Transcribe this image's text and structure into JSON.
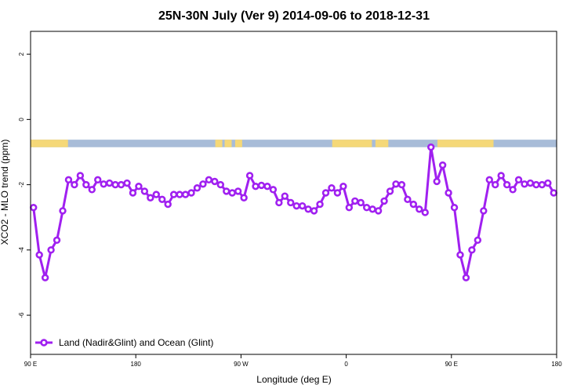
{
  "chart_data": {
    "type": "line",
    "title": "25N-30N July (Ver 9)   2014-09-06 to 2018-12-31",
    "xlabel": "Longitude (deg E)",
    "ylabel": "XCO2 - MLO trend (ppm)",
    "xlim": [
      90,
      540
    ],
    "ylim": [
      -7.2,
      2.7
    ],
    "x_ticks": [
      {
        "value": 90,
        "label": "90 E"
      },
      {
        "value": 180,
        "label": "180"
      },
      {
        "value": 270,
        "label": "90 W"
      },
      {
        "value": 360,
        "label": "0"
      },
      {
        "value": 450,
        "label": "90 E"
      },
      {
        "value": 540,
        "label": "180"
      }
    ],
    "y_ticks": [
      {
        "value": 2,
        "label": "2"
      },
      {
        "value": 0,
        "label": "0"
      },
      {
        "value": -2,
        "label": "-2"
      },
      {
        "value": -4,
        "label": "-4"
      },
      {
        "value": -6,
        "label": "-6"
      }
    ],
    "grid": false,
    "legend_position": "bottom-left",
    "series": [
      {
        "name": "Land (Nadir&Glint) and Ocean (Glint)",
        "color": "#a020f0",
        "x": [
          92.5,
          97.5,
          102.5,
          107.5,
          112.5,
          117.5,
          122.5,
          127.5,
          132.5,
          137.5,
          142.5,
          147.5,
          152.5,
          157.5,
          162.5,
          167.5,
          172.5,
          177.5,
          182.5,
          187.5,
          192.5,
          197.5,
          202.5,
          207.5,
          212.5,
          217.5,
          222.5,
          227.5,
          232.5,
          237.5,
          242.5,
          247.5,
          252.5,
          257.5,
          262.5,
          267.5,
          272.5,
          277.5,
          282.5,
          287.5,
          292.5,
          297.5,
          302.5,
          307.5,
          312.5,
          317.5,
          322.5,
          327.5,
          332.5,
          337.5,
          342.5,
          347.5,
          352.5,
          357.5,
          362.5,
          367.5,
          372.5,
          377.5,
          382.5,
          387.5,
          392.5,
          397.5,
          402.5,
          407.5,
          412.5,
          417.5,
          422.5,
          427.5,
          432.5,
          437.5,
          442.5,
          447.5,
          452.5,
          457.5,
          462.5,
          467.5,
          472.5,
          477.5,
          482.5,
          487.5,
          492.5,
          497.5,
          502.5,
          507.5,
          512.5,
          517.5,
          522.5,
          527.5,
          532.5,
          537.5
        ],
        "y": [
          -2.7,
          -4.15,
          -4.85,
          -4.0,
          -3.7,
          -2.8,
          -1.85,
          -2.0,
          -1.72,
          -2.0,
          -2.15,
          -1.85,
          -1.98,
          -1.95,
          -2.0,
          -2.0,
          -1.95,
          -2.25,
          -2.05,
          -2.2,
          -2.4,
          -2.3,
          -2.45,
          -2.6,
          -2.3,
          -2.3,
          -2.3,
          -2.25,
          -2.1,
          -1.98,
          -1.85,
          -1.9,
          -2.0,
          -2.2,
          -2.25,
          -2.2,
          -2.4,
          -1.72,
          -2.05,
          -2.02,
          -2.05,
          -2.15,
          -2.55,
          -2.35,
          -2.55,
          -2.65,
          -2.65,
          -2.75,
          -2.8,
          -2.6,
          -2.25,
          -2.1,
          -2.25,
          -2.05,
          -2.7,
          -2.5,
          -2.55,
          -2.7,
          -2.75,
          -2.8,
          -2.5,
          -2.2,
          -1.98,
          -2.0,
          -2.45,
          -2.6,
          -2.75,
          -2.85,
          -0.85,
          -1.9,
          -1.4,
          -2.25,
          -2.7,
          -4.15,
          -4.85,
          -4.0,
          -3.7,
          -2.8,
          -1.85,
          -2.0,
          -1.72,
          -2.0,
          -2.15,
          -1.85,
          -1.98,
          -1.95,
          -2.0,
          -2.0,
          -1.95,
          -2.25
        ]
      }
    ],
    "surface_band": {
      "y_range": [
        -0.62,
        -0.85
      ],
      "land_color": "#f5d878",
      "ocean_color": "#a8bcd8",
      "land_segments": [
        [
          90,
          122
        ],
        [
          248,
          254
        ],
        [
          256,
          262
        ],
        [
          265,
          271
        ],
        [
          348,
          382
        ],
        [
          385,
          396
        ],
        [
          438,
          486
        ]
      ]
    }
  }
}
